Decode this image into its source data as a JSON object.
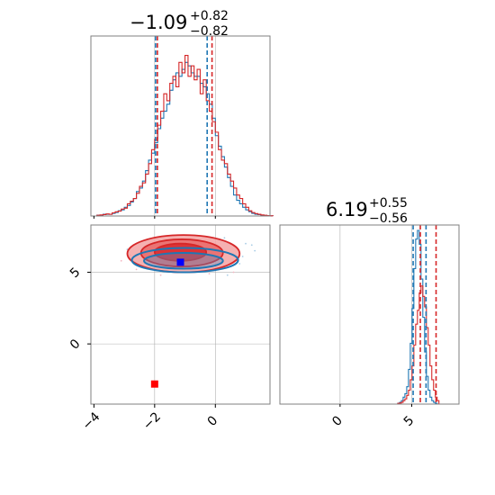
{
  "colors": {
    "blue": "#1f77b4",
    "red": "#d62728",
    "red_fill_light": "#f3a3a3",
    "red_fill_dark": "#d9282c",
    "blue_fill": "#4a90c8",
    "marker_blue": "#0000ff",
    "marker_red": "#ff0000",
    "grid": "#b0b0b0",
    "frame": "#7f7f7f"
  },
  "chart_data": [
    {
      "type": "histogram",
      "panel": "param1-marginal",
      "title": {
        "value": "−1.09",
        "sup": "+0.82",
        "sub": "−0.82"
      },
      "xlim": [
        -4.1,
        1.8
      ],
      "ylim": [
        0,
        1.0
      ],
      "grid": true,
      "series": [
        {
          "color": "blue",
          "bin_edges_start": -4.0,
          "bin_width": 0.1,
          "values": [
            0,
            0.005,
            0.005,
            0.01,
            0.01,
            0.01,
            0.015,
            0.02,
            0.03,
            0.035,
            0.05,
            0.06,
            0.08,
            0.1,
            0.14,
            0.16,
            0.2,
            0.26,
            0.32,
            0.36,
            0.42,
            0.5,
            0.56,
            0.6,
            0.64,
            0.72,
            0.78,
            0.82,
            0.8,
            0.84,
            0.88,
            0.86,
            0.82,
            0.8,
            0.8,
            0.76,
            0.74,
            0.7,
            0.64,
            0.56,
            0.46,
            0.4,
            0.34,
            0.28,
            0.22,
            0.17,
            0.12,
            0.09,
            0.07,
            0.05,
            0.035,
            0.025,
            0.015,
            0.01,
            0.008,
            0.005,
            0.003,
            0.002,
            0.001
          ]
        },
        {
          "color": "red",
          "bin_edges_start": -4.0,
          "bin_width": 0.1,
          "values": [
            0,
            0.004,
            0.006,
            0.008,
            0.012,
            0.01,
            0.018,
            0.024,
            0.028,
            0.04,
            0.045,
            0.07,
            0.085,
            0.1,
            0.13,
            0.17,
            0.19,
            0.24,
            0.3,
            0.38,
            0.44,
            0.52,
            0.6,
            0.7,
            0.66,
            0.76,
            0.8,
            0.74,
            0.88,
            0.82,
            0.92,
            0.8,
            0.86,
            0.78,
            0.84,
            0.7,
            0.78,
            0.66,
            0.6,
            0.54,
            0.48,
            0.38,
            0.32,
            0.3,
            0.24,
            0.2,
            0.16,
            0.12,
            0.1,
            0.07,
            0.05,
            0.03,
            0.02,
            0.014,
            0.01,
            0.006,
            0.004,
            0.002,
            0.001
          ]
        }
      ],
      "quantile_lines": [
        {
          "color": "blue",
          "x": [
            -1.97,
            -0.27
          ]
        },
        {
          "color": "red",
          "x": [
            -1.91,
            -0.11
          ]
        }
      ]
    },
    {
      "type": "contour",
      "panel": "joint",
      "xlim": [
        -4.1,
        1.8
      ],
      "ylim": [
        -4.2,
        8.3
      ],
      "xticks": [
        -4,
        -2,
        0
      ],
      "yticks": [
        0,
        5
      ],
      "grid": true,
      "contours": [
        {
          "color": "red",
          "levels": [
            {
              "cx": -1.05,
              "cy": 6.3,
              "rx": 1.85,
              "ry": 1.3
            },
            {
              "cx": -1.1,
              "cy": 6.35,
              "rx": 1.35,
              "ry": 0.95
            },
            {
              "cx": -1.15,
              "cy": 6.4,
              "rx": 0.85,
              "ry": 0.6
            }
          ]
        },
        {
          "color": "blue",
          "levels": [
            {
              "cx": -1.0,
              "cy": 5.85,
              "rx": 1.75,
              "ry": 0.85
            },
            {
              "cx": -1.05,
              "cy": 5.8,
              "rx": 1.3,
              "ry": 0.55
            }
          ]
        }
      ],
      "markers": [
        {
          "color": "marker_blue",
          "x": -1.15,
          "y": 5.7
        },
        {
          "color": "marker_red",
          "x": -2.0,
          "y": -2.8
        }
      ]
    },
    {
      "type": "histogram",
      "panel": "param2-marginal",
      "title": {
        "value": "6.19",
        "sup": "+0.55",
        "sub": "−0.56"
      },
      "xlim": [
        -4.2,
        8.3
      ],
      "ylim": [
        0,
        1.0
      ],
      "xticks": [
        0,
        5
      ],
      "grid": true,
      "series": [
        {
          "color": "blue",
          "bin_edges_start": 3.9,
          "bin_width": 0.125,
          "values": [
            0,
            0.005,
            0.01,
            0.02,
            0.04,
            0.06,
            0.1,
            0.2,
            0.35,
            0.55,
            0.78,
            0.95,
            1.0,
            0.92,
            0.72,
            0.5,
            0.3,
            0.16,
            0.08,
            0.04,
            0.02,
            0.01,
            0.005,
            0
          ]
        },
        {
          "color": "red",
          "bin_edges_start": 3.9,
          "bin_width": 0.125,
          "values": [
            0,
            0.004,
            0.006,
            0.01,
            0.02,
            0.03,
            0.05,
            0.08,
            0.14,
            0.22,
            0.34,
            0.46,
            0.54,
            0.64,
            0.68,
            0.62,
            0.56,
            0.44,
            0.34,
            0.22,
            0.14,
            0.08,
            0.04,
            0.02
          ]
        }
      ],
      "quantile_lines": [
        {
          "color": "blue",
          "x": [
            5.1,
            6.0
          ]
        },
        {
          "color": "red",
          "x": [
            5.6,
            6.7
          ]
        }
      ]
    }
  ]
}
